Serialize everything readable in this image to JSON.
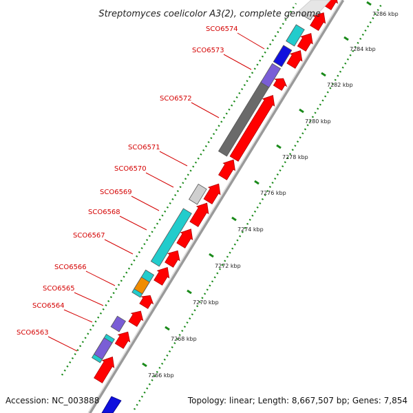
{
  "title": "Streptomyces coelicolor A3(2), complete genome",
  "footer": {
    "accession": "Accession: NC_003888",
    "summary": "Topology: linear; Length: 8,667,507 bp; Genes: 7,854"
  },
  "colors": {
    "label": "#d40000",
    "forward_strand": "#ff0000",
    "backbone": "#9a9a9a",
    "ruler": "#1a8a1a",
    "teal": "#22cccc",
    "blue": "#1010dd",
    "purple": "#7a5ed6",
    "dark_gray": "#6a6a6a",
    "light_gray": "#cfcfcf",
    "orange": "#f08c00"
  },
  "ruler_ticks": [
    "7266 kbp",
    "7268 kbp",
    "7270 kbp",
    "7272 kbp",
    "7274 kbp",
    "7276 kbp",
    "7278 kbp",
    "7280 kbp",
    "7282 kbp",
    "7284 kbp",
    "7286 kbp"
  ],
  "gene_labels": [
    "SCO6563",
    "SCO6564",
    "SCO6565",
    "SCO6566",
    "SCO6567",
    "SCO6568",
    "SCO6569",
    "SCO6570",
    "SCO6571",
    "SCO6572",
    "SCO6573",
    "SCO6574"
  ]
}
